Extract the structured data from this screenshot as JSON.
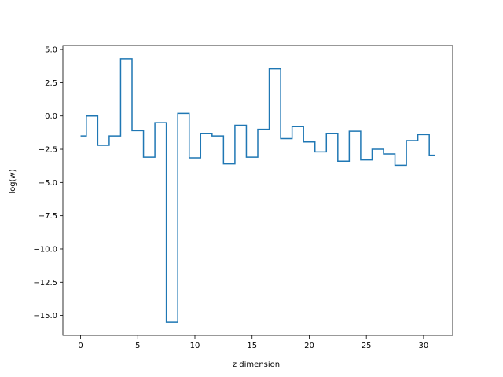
{
  "chart_data": {
    "type": "line",
    "drawstyle": "steps-mid",
    "title": "",
    "xlabel": "z dimension",
    "ylabel": "log(w)",
    "xlim": [
      -1.55,
      32.55
    ],
    "ylim": [
      -16.5,
      5.3
    ],
    "xticks": [
      0,
      5,
      10,
      15,
      20,
      25,
      30
    ],
    "xtick_labels": [
      "0",
      "5",
      "10",
      "15",
      "20",
      "25",
      "30"
    ],
    "yticks": [
      5.0,
      2.5,
      0.0,
      -2.5,
      -5.0,
      -7.5,
      -10.0,
      -12.5,
      -15.0
    ],
    "ytick_labels": [
      "5.0",
      "2.5",
      "0.0",
      "−2.5",
      "−5.0",
      "−7.5",
      "−10.0",
      "−12.5",
      "−15.0"
    ],
    "grid": false,
    "line_color": "#1f77b4",
    "series": [
      {
        "x": [
          0,
          1,
          2,
          3,
          4,
          5,
          6,
          7,
          8,
          9,
          10,
          11,
          12,
          13,
          14,
          15,
          16,
          17,
          18,
          19,
          20,
          21,
          22,
          23,
          24,
          25,
          26,
          27,
          28,
          29,
          30,
          31
        ],
        "y": [
          -1.5,
          0.0,
          -2.2,
          -1.5,
          4.3,
          -1.1,
          -3.1,
          -0.5,
          -15.5,
          0.2,
          -3.15,
          -1.3,
          -1.5,
          -3.6,
          -0.7,
          -3.1,
          -1.0,
          3.55,
          -1.7,
          -0.8,
          -1.95,
          -2.7,
          -1.3,
          -3.4,
          -1.15,
          -3.3,
          -2.5,
          -2.85,
          -3.7,
          -1.85,
          -1.4,
          -2.95
        ]
      }
    ]
  }
}
